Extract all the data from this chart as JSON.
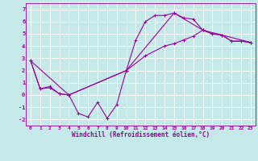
{
  "xlabel": "Windchill (Refroidissement éolien,°C)",
  "ylabel": "",
  "xlim": [
    -0.5,
    23.5
  ],
  "ylim": [
    -2.5,
    7.5
  ],
  "yticks": [
    -2,
    -1,
    0,
    1,
    2,
    3,
    4,
    5,
    6,
    7
  ],
  "xticks": [
    0,
    1,
    2,
    3,
    4,
    5,
    6,
    7,
    8,
    9,
    10,
    11,
    12,
    13,
    14,
    15,
    16,
    17,
    18,
    19,
    20,
    21,
    22,
    23
  ],
  "bg_color": "#c5e8e8",
  "line_color": "#990099",
  "line1_x": [
    0,
    1,
    2,
    3,
    4,
    5,
    6,
    7,
    8,
    9,
    10,
    11,
    12,
    13,
    14,
    15,
    16,
    17,
    18,
    19,
    20,
    21,
    22,
    23
  ],
  "line1_y": [
    2.8,
    0.5,
    0.6,
    0.1,
    0.0,
    -1.5,
    -1.8,
    -0.6,
    -1.9,
    -0.8,
    2.0,
    4.5,
    6.0,
    6.5,
    6.5,
    6.7,
    6.3,
    6.2,
    5.3,
    5.0,
    4.9,
    4.4,
    4.4,
    4.3
  ],
  "line2_x": [
    0,
    1,
    2,
    3,
    4,
    10,
    12,
    14,
    15,
    16,
    17,
    18,
    19,
    20,
    21,
    22,
    23
  ],
  "line2_y": [
    2.8,
    0.5,
    0.7,
    0.1,
    0.0,
    2.0,
    3.2,
    4.0,
    4.2,
    4.5,
    4.8,
    5.3,
    5.0,
    4.9,
    4.4,
    4.4,
    4.3
  ],
  "line3_x": [
    0,
    4,
    10,
    15,
    18,
    23
  ],
  "line3_y": [
    2.8,
    0.0,
    2.0,
    6.7,
    5.3,
    4.3
  ]
}
